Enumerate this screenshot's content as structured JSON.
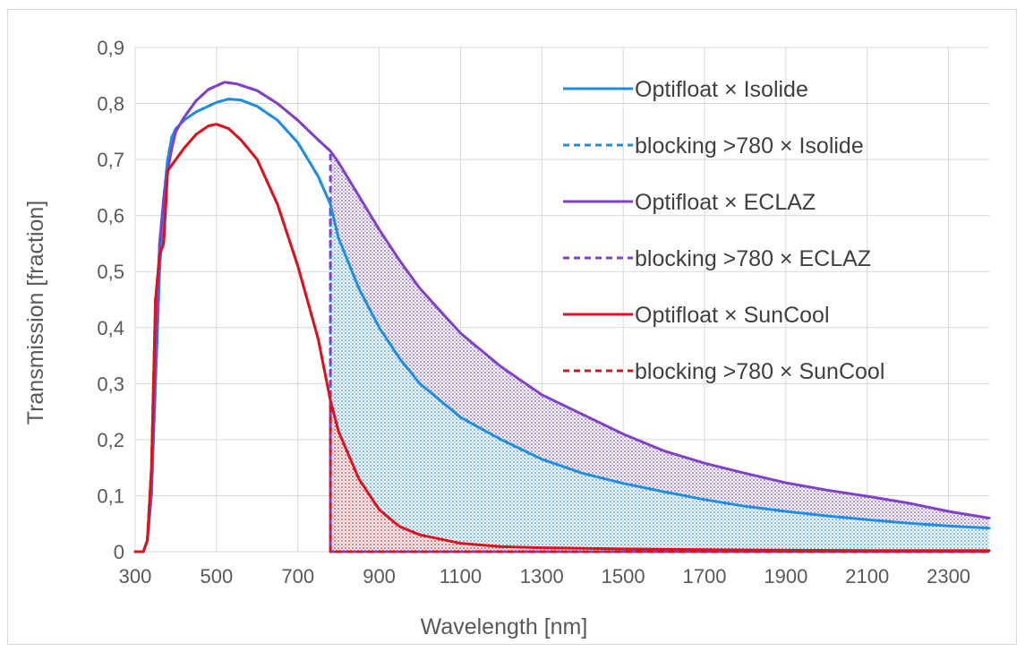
{
  "chart_data": {
    "type": "line",
    "title": "",
    "xlabel": "Wavelength [nm]",
    "ylabel": "Transmission [fraction]",
    "xlim": [
      300,
      2400
    ],
    "ylim": [
      0,
      0.9
    ],
    "x_ticks": [
      300,
      500,
      700,
      900,
      1100,
      1300,
      1500,
      1700,
      1900,
      2100,
      2300
    ],
    "x_tick_labels": [
      "300",
      "500",
      "700",
      "900",
      "1100",
      "1300",
      "1500",
      "1700",
      "1900",
      "2100",
      "2300"
    ],
    "y_ticks": [
      0,
      0.1,
      0.2,
      0.3,
      0.4,
      0.5,
      0.6,
      0.7,
      0.8,
      0.9
    ],
    "y_tick_labels": [
      "0",
      "0,1",
      "0,2",
      "0,3",
      "0,4",
      "0,5",
      "0,6",
      "0,7",
      "0,8",
      "0,9"
    ],
    "grid": true,
    "legend_position": "top-right",
    "cutoff_nm": 780,
    "series": [
      {
        "name": "Optifloat × Isolide",
        "color": "#1f8ee0",
        "style": "solid",
        "points": [
          [
            300,
            0
          ],
          [
            320,
            0
          ],
          [
            330,
            0.02
          ],
          [
            340,
            0.1
          ],
          [
            350,
            0.3
          ],
          [
            360,
            0.5
          ],
          [
            370,
            0.63
          ],
          [
            380,
            0.7
          ],
          [
            390,
            0.74
          ],
          [
            400,
            0.755
          ],
          [
            420,
            0.77
          ],
          [
            450,
            0.785
          ],
          [
            500,
            0.802
          ],
          [
            530,
            0.808
          ],
          [
            560,
            0.806
          ],
          [
            600,
            0.795
          ],
          [
            650,
            0.77
          ],
          [
            700,
            0.73
          ],
          [
            750,
            0.67
          ],
          [
            780,
            0.62
          ],
          [
            800,
            0.56
          ],
          [
            850,
            0.47
          ],
          [
            900,
            0.4
          ],
          [
            950,
            0.345
          ],
          [
            1000,
            0.3
          ],
          [
            1100,
            0.24
          ],
          [
            1200,
            0.2
          ],
          [
            1300,
            0.165
          ],
          [
            1400,
            0.14
          ],
          [
            1500,
            0.122
          ],
          [
            1600,
            0.107
          ],
          [
            1700,
            0.093
          ],
          [
            1800,
            0.081
          ],
          [
            1900,
            0.072
          ],
          [
            2000,
            0.064
          ],
          [
            2100,
            0.057
          ],
          [
            2200,
            0.051
          ],
          [
            2300,
            0.046
          ],
          [
            2400,
            0.042
          ]
        ]
      },
      {
        "name": "blocking >780 × Isolide",
        "color": "#1f8ee0",
        "style": "dashed",
        "points": [
          [
            300,
            0
          ],
          [
            320,
            0
          ],
          [
            330,
            0.02
          ],
          [
            340,
            0.1
          ],
          [
            350,
            0.3
          ],
          [
            360,
            0.5
          ],
          [
            370,
            0.63
          ],
          [
            380,
            0.7
          ],
          [
            390,
            0.74
          ],
          [
            400,
            0.755
          ],
          [
            420,
            0.77
          ],
          [
            450,
            0.785
          ],
          [
            500,
            0.802
          ],
          [
            530,
            0.808
          ],
          [
            560,
            0.806
          ],
          [
            600,
            0.795
          ],
          [
            650,
            0.77
          ],
          [
            700,
            0.73
          ],
          [
            750,
            0.67
          ],
          [
            780,
            0.62
          ],
          [
            780,
            0
          ],
          [
            2400,
            0
          ]
        ]
      },
      {
        "name": "Optifloat × ECLAZ",
        "color": "#8040c8",
        "style": "solid",
        "points": [
          [
            300,
            0
          ],
          [
            320,
            0
          ],
          [
            330,
            0.02
          ],
          [
            340,
            0.12
          ],
          [
            350,
            0.35
          ],
          [
            360,
            0.55
          ],
          [
            370,
            0.63
          ],
          [
            380,
            0.68
          ],
          [
            390,
            0.72
          ],
          [
            400,
            0.75
          ],
          [
            420,
            0.775
          ],
          [
            450,
            0.805
          ],
          [
            480,
            0.825
          ],
          [
            520,
            0.838
          ],
          [
            550,
            0.835
          ],
          [
            600,
            0.823
          ],
          [
            650,
            0.8
          ],
          [
            700,
            0.77
          ],
          [
            750,
            0.735
          ],
          [
            780,
            0.715
          ],
          [
            800,
            0.695
          ],
          [
            850,
            0.635
          ],
          [
            900,
            0.575
          ],
          [
            950,
            0.52
          ],
          [
            1000,
            0.47
          ],
          [
            1100,
            0.39
          ],
          [
            1200,
            0.33
          ],
          [
            1300,
            0.28
          ],
          [
            1400,
            0.245
          ],
          [
            1500,
            0.21
          ],
          [
            1600,
            0.18
          ],
          [
            1700,
            0.158
          ],
          [
            1800,
            0.14
          ],
          [
            1900,
            0.123
          ],
          [
            2000,
            0.11
          ],
          [
            2100,
            0.099
          ],
          [
            2200,
            0.087
          ],
          [
            2300,
            0.072
          ],
          [
            2400,
            0.06
          ]
        ]
      },
      {
        "name": "blocking >780 × ECLAZ",
        "color": "#8040c8",
        "style": "dashed",
        "points": [
          [
            300,
            0
          ],
          [
            320,
            0
          ],
          [
            330,
            0.02
          ],
          [
            340,
            0.12
          ],
          [
            350,
            0.35
          ],
          [
            360,
            0.55
          ],
          [
            370,
            0.63
          ],
          [
            380,
            0.68
          ],
          [
            390,
            0.72
          ],
          [
            400,
            0.75
          ],
          [
            420,
            0.775
          ],
          [
            450,
            0.805
          ],
          [
            480,
            0.825
          ],
          [
            520,
            0.838
          ],
          [
            550,
            0.835
          ],
          [
            600,
            0.823
          ],
          [
            650,
            0.8
          ],
          [
            700,
            0.77
          ],
          [
            750,
            0.735
          ],
          [
            780,
            0.715
          ],
          [
            780,
            0
          ],
          [
            2400,
            0
          ]
        ]
      },
      {
        "name": "Optifloat × SunCool",
        "color": "#d9141e",
        "style": "solid",
        "points": [
          [
            300,
            0
          ],
          [
            320,
            0
          ],
          [
            330,
            0.02
          ],
          [
            340,
            0.15
          ],
          [
            350,
            0.45
          ],
          [
            360,
            0.53
          ],
          [
            370,
            0.55
          ],
          [
            380,
            0.68
          ],
          [
            390,
            0.69
          ],
          [
            400,
            0.7
          ],
          [
            420,
            0.72
          ],
          [
            450,
            0.745
          ],
          [
            480,
            0.76
          ],
          [
            500,
            0.763
          ],
          [
            530,
            0.755
          ],
          [
            560,
            0.735
          ],
          [
            600,
            0.7
          ],
          [
            650,
            0.62
          ],
          [
            700,
            0.51
          ],
          [
            750,
            0.38
          ],
          [
            780,
            0.27
          ],
          [
            800,
            0.215
          ],
          [
            850,
            0.13
          ],
          [
            900,
            0.075
          ],
          [
            950,
            0.045
          ],
          [
            1000,
            0.03
          ],
          [
            1100,
            0.015
          ],
          [
            1200,
            0.009
          ],
          [
            1300,
            0.007
          ],
          [
            1500,
            0.005
          ],
          [
            1800,
            0.003
          ],
          [
            2100,
            0.002
          ],
          [
            2400,
            0.002
          ]
        ]
      },
      {
        "name": "blocking >780 × SunCool",
        "color": "#d9141e",
        "style": "dashed",
        "points": [
          [
            300,
            0
          ],
          [
            320,
            0
          ],
          [
            330,
            0.02
          ],
          [
            340,
            0.15
          ],
          [
            350,
            0.45
          ],
          [
            360,
            0.53
          ],
          [
            370,
            0.55
          ],
          [
            380,
            0.68
          ],
          [
            390,
            0.69
          ],
          [
            400,
            0.7
          ],
          [
            420,
            0.72
          ],
          [
            450,
            0.745
          ],
          [
            480,
            0.76
          ],
          [
            500,
            0.763
          ],
          [
            530,
            0.755
          ],
          [
            560,
            0.735
          ],
          [
            600,
            0.7
          ],
          [
            650,
            0.62
          ],
          [
            700,
            0.51
          ],
          [
            750,
            0.38
          ],
          [
            780,
            0.27
          ],
          [
            780,
            0
          ],
          [
            2400,
            0
          ]
        ]
      }
    ]
  }
}
